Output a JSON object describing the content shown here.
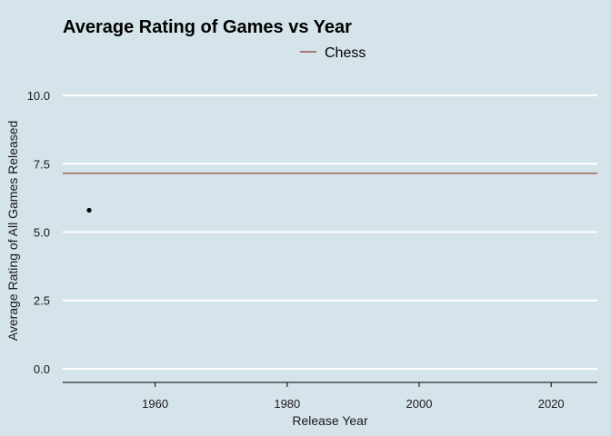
{
  "chart_data": {
    "type": "line",
    "title": "Average Rating of Games vs Year",
    "xlabel": "Release Year",
    "ylabel": "Average Rating of All Games Released",
    "xlim": [
      1946,
      2027
    ],
    "ylim": [
      -0.5,
      10.5
    ],
    "x_ticks": [
      1960,
      1980,
      2000,
      2020
    ],
    "y_ticks": [
      0.0,
      2.5,
      5.0,
      7.5,
      10.0
    ],
    "y_tick_labels": [
      "0.0",
      "2.5",
      "5.0",
      "7.5",
      "10.0"
    ],
    "x_tick_labels": [
      "1960",
      "1980",
      "2000",
      "2020"
    ],
    "grid": "horizontal",
    "legend": {
      "position": "top",
      "entries": [
        "Chess"
      ]
    },
    "series": [
      {
        "name": "Chess",
        "kind": "hline",
        "value": 7.15,
        "color": "#8b3a2e"
      }
    ],
    "points": [
      {
        "x": 1950,
        "y": 5.8,
        "color": "#000000"
      }
    ]
  }
}
